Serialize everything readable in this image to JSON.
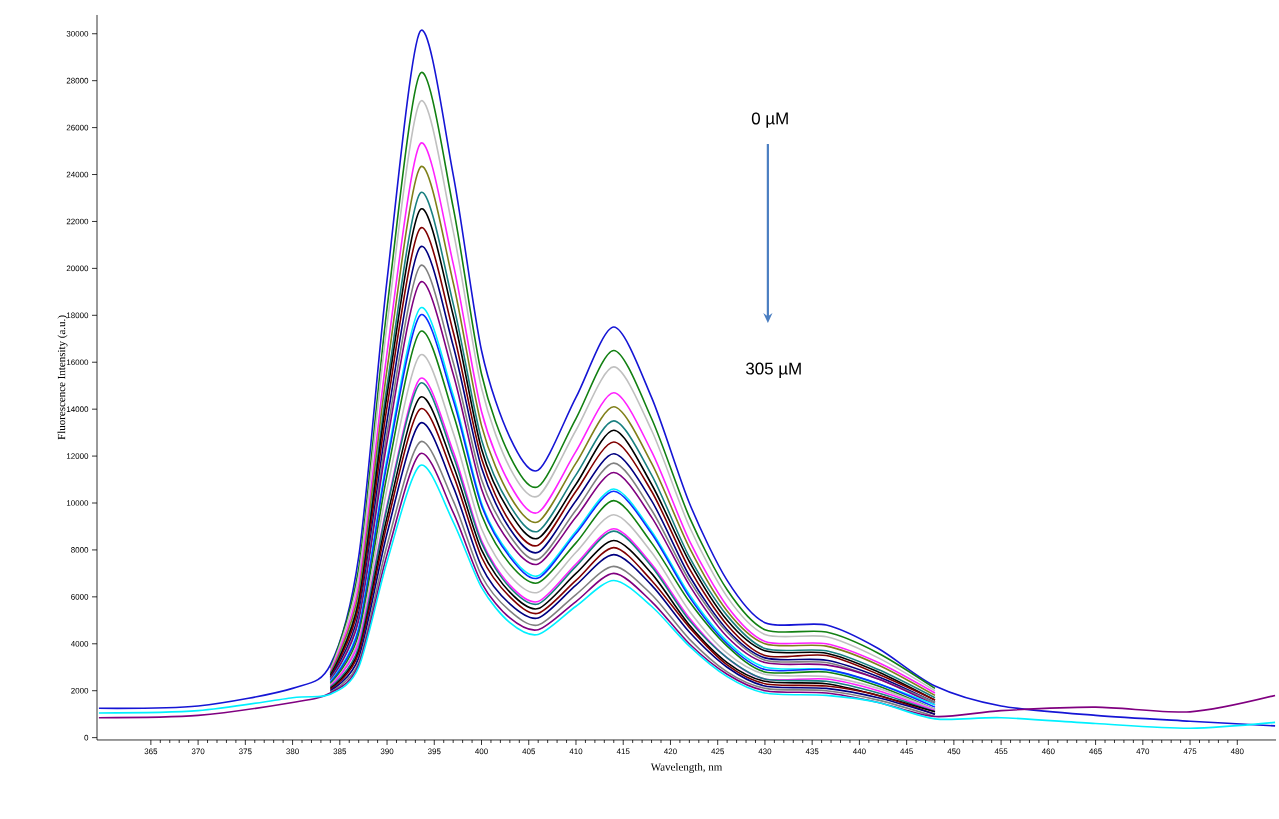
{
  "chart_data": {
    "type": "line",
    "xlabel": "Wavelength, nm",
    "ylabel": "Fluorescence Intensity (a.u.)",
    "annotations": [
      "0 µM",
      "305 µM"
    ],
    "xlim": [
      359.3,
      484.1
    ],
    "ylim": [
      -100,
      30800
    ],
    "xticks": [
      365,
      370,
      375,
      380,
      385,
      390,
      395,
      400,
      405,
      410,
      415,
      420,
      425,
      430,
      435,
      440,
      445,
      450,
      455,
      460,
      465,
      470,
      475,
      480
    ],
    "yticks": [
      0,
      2000,
      4000,
      6000,
      8000,
      10000,
      12000,
      14000,
      16000,
      18000,
      20000,
      22000,
      24000,
      26000,
      28000,
      30000
    ],
    "x": [
      359.5,
      370,
      380,
      384,
      387,
      390,
      393.5,
      397,
      400,
      403,
      406,
      410,
      414,
      418,
      422,
      426,
      430,
      436.5,
      442,
      448,
      455,
      465,
      475,
      484
    ],
    "series": [
      {
        "color": "#1515d5",
        "values": [
          1250,
          1350,
          2100,
          3100,
          7700,
          19500,
          30100,
          24000,
          16500,
          12800,
          11400,
          14500,
          17500,
          14500,
          10000,
          6700,
          4900,
          4800,
          3800,
          2200,
          1350,
          950,
          700,
          500
        ]
      },
      {
        "color": "#128012",
        "values": [
          null,
          null,
          null,
          2950,
          7200,
          18300,
          28300,
          22600,
          15500,
          12000,
          10700,
          13600,
          16500,
          13600,
          9400,
          6300,
          4600,
          4500,
          3600,
          2100,
          null,
          null,
          null,
          null
        ]
      },
      {
        "color": "#c0c0c0",
        "values": [
          null,
          null,
          null,
          2900,
          6900,
          17600,
          27100,
          21600,
          14900,
          11500,
          10300,
          13100,
          15800,
          13100,
          9000,
          6000,
          4400,
          4300,
          3400,
          2000,
          null,
          null,
          null,
          null
        ]
      },
      {
        "color": "#ff22ff",
        "values": [
          null,
          null,
          null,
          2800,
          6500,
          16400,
          25300,
          20200,
          13900,
          10800,
          9600,
          12200,
          14700,
          12200,
          8400,
          5600,
          4100,
          4000,
          3200,
          1900,
          null,
          null,
          null,
          null
        ]
      },
      {
        "color": "#80801a",
        "values": [
          null,
          null,
          null,
          2750,
          6200,
          15700,
          24300,
          19400,
          13300,
          10300,
          9200,
          11700,
          14100,
          11700,
          8100,
          5400,
          4000,
          3900,
          3100,
          1800,
          null,
          null,
          null,
          null
        ]
      },
      {
        "color": "#1a8080",
        "values": [
          null,
          null,
          null,
          2700,
          5900,
          15000,
          23200,
          18500,
          12700,
          9900,
          8800,
          11200,
          13500,
          11200,
          7700,
          5200,
          3800,
          3700,
          2900,
          1700,
          null,
          null,
          null,
          null
        ]
      },
      {
        "color": "#000000",
        "values": [
          null,
          null,
          null,
          2650,
          5800,
          14600,
          22500,
          18000,
          12300,
          9600,
          8500,
          10800,
          13100,
          10800,
          7500,
          5000,
          3700,
          3600,
          2800,
          1600,
          null,
          null,
          null,
          null
        ]
      },
      {
        "color": "#800000",
        "values": [
          null,
          null,
          null,
          2600,
          5600,
          14100,
          21700,
          17300,
          11900,
          9200,
          8200,
          10500,
          12600,
          10500,
          7200,
          4800,
          3500,
          3500,
          2700,
          1600,
          null,
          null,
          null,
          null
        ]
      },
      {
        "color": "#000080",
        "values": [
          null,
          null,
          null,
          2550,
          5300,
          13500,
          20900,
          16700,
          11500,
          8900,
          7900,
          10100,
          12100,
          10100,
          6900,
          4600,
          3400,
          3300,
          2600,
          1500,
          null,
          null,
          null,
          null
        ]
      },
      {
        "color": "#808080",
        "values": [
          null,
          null,
          null,
          2500,
          5100,
          13000,
          20100,
          16000,
          11000,
          8600,
          7600,
          9700,
          11700,
          9700,
          6700,
          4500,
          3300,
          3200,
          2500,
          1500,
          null,
          null,
          null,
          null
        ]
      },
      {
        "color": "#800080",
        "values": [
          null,
          null,
          null,
          2450,
          5000,
          12600,
          19400,
          15500,
          10600,
          8300,
          7400,
          9400,
          11300,
          9400,
          6500,
          4300,
          3200,
          3100,
          2500,
          1400,
          null,
          null,
          null,
          null
        ]
      },
      {
        "color": "#00f0ff",
        "values": [
          null,
          null,
          null,
          2400,
          4700,
          11900,
          18300,
          14600,
          10000,
          7800,
          6900,
          8800,
          10600,
          8800,
          6100,
          4100,
          3000,
          2900,
          2300,
          1400,
          null,
          null,
          null,
          null
        ]
      },
      {
        "color": "#0a30ff",
        "values": [
          null,
          null,
          null,
          2350,
          4600,
          11700,
          18000,
          14400,
          9900,
          7700,
          6800,
          8700,
          10500,
          8700,
          6000,
          4000,
          2900,
          2900,
          2300,
          1300,
          null,
          null,
          null,
          null
        ]
      },
      {
        "color": "#128012",
        "values": [
          null,
          null,
          null,
          2300,
          4400,
          11200,
          17300,
          13800,
          9500,
          7400,
          6600,
          8300,
          10100,
          8300,
          5800,
          3900,
          2800,
          2800,
          2200,
          1200,
          null,
          null,
          null,
          null
        ]
      },
      {
        "color": "#c0c0c0",
        "values": [
          null,
          null,
          null,
          2250,
          4200,
          10600,
          16300,
          13000,
          8900,
          6900,
          6200,
          7900,
          9500,
          7900,
          5400,
          3600,
          2700,
          2600,
          2100,
          1200,
          null,
          null,
          null,
          null
        ]
      },
      {
        "color": "#ff22ff",
        "values": [
          null,
          null,
          null,
          2200,
          4050,
          9900,
          15300,
          12200,
          8400,
          6500,
          5800,
          7400,
          8900,
          7400,
          5100,
          3400,
          2500,
          2500,
          2000,
          1150,
          null,
          null,
          null,
          null
        ]
      },
      {
        "color": "#1a8080",
        "values": [
          null,
          null,
          null,
          2150,
          3850,
          9800,
          15100,
          12000,
          8300,
          6400,
          5700,
          7300,
          8800,
          7300,
          5000,
          3400,
          2500,
          2400,
          1900,
          1100,
          null,
          null,
          null,
          null
        ]
      },
      {
        "color": "#000000",
        "values": [
          null,
          null,
          null,
          2100,
          3700,
          9400,
          14500,
          11600,
          8000,
          6200,
          5500,
          7000,
          8400,
          7000,
          4800,
          3200,
          2400,
          2300,
          1800,
          1100,
          null,
          null,
          null,
          null
        ]
      },
      {
        "color": "#800000",
        "values": [
          null,
          null,
          null,
          2050,
          3600,
          9100,
          14000,
          11200,
          7700,
          6000,
          5300,
          6700,
          8100,
          6700,
          4700,
          3100,
          2300,
          2200,
          1800,
          1000,
          null,
          null,
          null,
          null
        ]
      },
      {
        "color": "#000080",
        "values": [
          null,
          null,
          null,
          2000,
          3400,
          8700,
          13400,
          10700,
          7300,
          5700,
          5100,
          6500,
          7800,
          6500,
          4500,
          3000,
          2200,
          2100,
          1700,
          1000,
          null,
          null,
          null,
          null
        ]
      },
      {
        "color": "#808080",
        "values": [
          null,
          null,
          null,
          1950,
          3200,
          8200,
          12600,
          10100,
          6900,
          5400,
          4800,
          6100,
          7300,
          6100,
          4200,
          2800,
          2100,
          2000,
          1600,
          900,
          null,
          null,
          null,
          null
        ]
      },
      {
        "color": "#800080",
        "values": [
          850,
          950,
          1500,
          1900,
          3100,
          7800,
          12100,
          9600,
          6600,
          5100,
          4600,
          5800,
          7000,
          5800,
          4000,
          2700,
          2000,
          1900,
          1500,
          900,
          1150,
          1300,
          1100,
          1800
        ]
      },
      {
        "color": "#00f0ff",
        "values": [
          1050,
          1150,
          1700,
          1850,
          3000,
          7500,
          11600,
          9200,
          6400,
          4900,
          4400,
          5600,
          6700,
          5600,
          3900,
          2600,
          1900,
          1800,
          1500,
          800,
          850,
          600,
          400,
          650
        ]
      }
    ]
  }
}
